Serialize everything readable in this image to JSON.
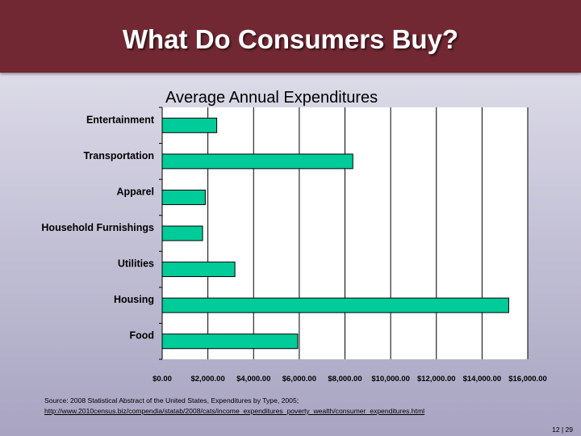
{
  "header": {
    "title": "What Do Consumers Buy?"
  },
  "chart_data": {
    "type": "bar",
    "orientation": "horizontal",
    "title": "Average Annual Expenditures",
    "categories": [
      "Entertainment",
      "Transportation",
      "Apparel",
      "Household Furnishings",
      "Utilities",
      "Housing",
      "Food"
    ],
    "values": [
      2388,
      8344,
      1886,
      1767,
      3183,
      15167,
      5931
    ],
    "xlim": [
      0,
      16000
    ],
    "x_ticks": [
      0,
      2000,
      4000,
      6000,
      8000,
      10000,
      12000,
      14000,
      16000
    ],
    "x_tick_labels": [
      "$0.00",
      "$2,000.00",
      "$4,000.00",
      "$6,000.00",
      "$8,000.00",
      "$10,000.00",
      "$12,000.00",
      "$14,000.00",
      "$16,000.00"
    ],
    "grid": true,
    "bar_color": "#00cc99",
    "legend": "none"
  },
  "source": {
    "line1": "Source: 2008 Statistical Abstract of the United States, Expenditures by Type, 2005;",
    "link": "http://www.2010census.biz/compendia/statab/2008/cats/income_expenditures_poverty_wealth/consumer_expenditures.html"
  },
  "page_number": "12 | 29"
}
